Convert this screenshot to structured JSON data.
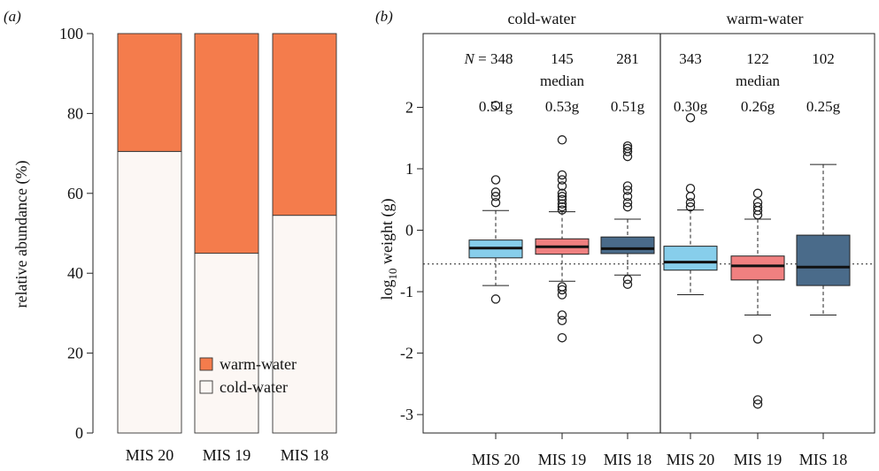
{
  "chart_data": [
    {
      "type": "bar",
      "panel_label": "(a)",
      "stacked": true,
      "categories": [
        "MIS 20",
        "MIS 19",
        "MIS 18"
      ],
      "series": [
        {
          "name": "cold-water",
          "values": [
            70.5,
            45.0,
            54.5
          ],
          "color": "#fcf7f4"
        },
        {
          "name": "warm-water",
          "values": [
            29.5,
            55.0,
            45.5
          ],
          "color": "#f47c4c"
        }
      ],
      "ylabel": "relative abundance (%)",
      "ylim": [
        0,
        100
      ],
      "yticks": [
        0,
        20,
        40,
        60,
        80,
        100
      ],
      "legend": {
        "placement": "inside-bottom-right",
        "entries": [
          "warm-water",
          "cold-water"
        ]
      }
    },
    {
      "type": "box",
      "panel_label": "(b)",
      "groups": [
        "cold-water",
        "warm-water"
      ],
      "categories": [
        "MIS 20",
        "MIS 19",
        "MIS 18",
        "MIS 20",
        "MIS 19",
        "MIS 18"
      ],
      "n_prefix": "N = ",
      "median_label": "median",
      "n_labels": [
        "348",
        "145",
        "281",
        "343",
        "122",
        "102"
      ],
      "median_labels": [
        "0.51g",
        "0.53g",
        "0.51g",
        "0.30g",
        "0.26g",
        "0.25g"
      ],
      "boxes": [
        {
          "group": "cold-water",
          "category": "MIS 20",
          "color": "#87ceeb",
          "whisker_low": -0.9,
          "q1": -0.45,
          "median": -0.29,
          "q3": -0.16,
          "whisker_high": 0.32,
          "outliers": [
            -1.12,
            0.45,
            0.55,
            0.62,
            0.82,
            2.03
          ]
        },
        {
          "group": "cold-water",
          "category": "MIS 19",
          "color": "#f08080",
          "whisker_low": -0.83,
          "q1": -0.39,
          "median": -0.27,
          "q3": -0.14,
          "whisker_high": 0.3,
          "outliers": [
            -1.75,
            -1.47,
            -1.38,
            -1.05,
            -0.97,
            -0.92,
            0.33,
            0.38,
            0.43,
            0.5,
            0.55,
            0.6,
            0.72,
            0.82,
            0.9,
            1.47
          ]
        },
        {
          "group": "cold-water",
          "category": "MIS 18",
          "color": "#4a6b8a",
          "whisker_low": -0.73,
          "q1": -0.38,
          "median": -0.3,
          "q3": -0.11,
          "whisker_high": 0.18,
          "outliers": [
            -0.88,
            -0.8,
            0.38,
            0.45,
            0.55,
            0.65,
            0.72,
            1.2,
            1.28,
            1.33,
            1.37
          ]
        },
        {
          "group": "warm-water",
          "category": "MIS 20",
          "color": "#87ceeb",
          "whisker_low": -1.05,
          "q1": -0.65,
          "median": -0.52,
          "q3": -0.26,
          "whisker_high": 0.33,
          "outliers": [
            0.38,
            0.45,
            0.55,
            0.68,
            1.83
          ]
        },
        {
          "group": "warm-water",
          "category": "MIS 19",
          "color": "#f08080",
          "whisker_low": -1.38,
          "q1": -0.81,
          "median": -0.58,
          "q3": -0.42,
          "whisker_high": 0.18,
          "outliers": [
            -2.83,
            -2.76,
            -1.77,
            0.25,
            0.32,
            0.38,
            0.45,
            0.6
          ]
        },
        {
          "group": "warm-water",
          "category": "MIS 18",
          "color": "#4a6b8a",
          "whisker_low": -1.38,
          "q1": -0.9,
          "median": -0.6,
          "q3": -0.08,
          "whisker_high": 1.07,
          "outliers": []
        }
      ],
      "reference_line": -0.55,
      "ylabel": "log10 weight (g)",
      "ylabel_base": "log",
      "ylabel_sub": "10",
      "ylabel_rest": " weight (g)",
      "ylim": [
        -3.3,
        3.2
      ],
      "yticks": [
        -3,
        -2,
        -1,
        0,
        1,
        2
      ]
    }
  ]
}
